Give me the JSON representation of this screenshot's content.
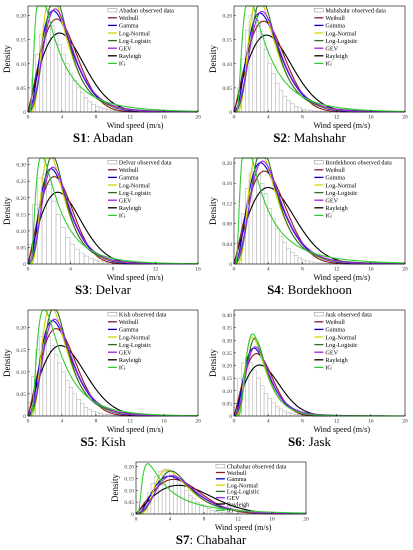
{
  "colors": {
    "Weibull": "#8b1a1a",
    "Gamma": "#0000cc",
    "Log-Normal": "#d4d400",
    "Log-Logistic": "#2f6b2f",
    "GEV": "#a020f0",
    "Rayleigh": "#000000",
    "IG": "#33cc33",
    "observed": "#aaaaaa"
  },
  "chart_data": [
    {
      "type": "bar+line",
      "station": "S1",
      "name": "Abadan",
      "caption_code": "S1",
      "caption_name": ": Abadan",
      "xlabel": "Wind speed (m/s)",
      "ylabel": "Density",
      "xlim": [
        0,
        20
      ],
      "ylim": [
        0,
        0.22
      ],
      "xticks": [
        0,
        4,
        8,
        12,
        16,
        20
      ],
      "yticks": [
        0,
        0.05,
        0.1,
        0.15,
        0.2
      ],
      "ytick_labels": [
        "0",
        "0.05",
        "0.10",
        "0.15",
        "0.20"
      ],
      "legend": [
        "Abadan observed data",
        "Weibull",
        "Gamma",
        "Log-Normal",
        "Log-Logistic",
        "GEV",
        "Rayleigh",
        "IG"
      ],
      "mean": 4.1,
      "rayleigh_mode": 3.7,
      "ig_mode": 2.5,
      "histogram": [
        0.02,
        0.07,
        0.12,
        0.16,
        0.18,
        0.19,
        0.18,
        0.16,
        0.14,
        0.12,
        0.1,
        0.08,
        0.065,
        0.05,
        0.04,
        0.03,
        0.022,
        0.016,
        0.012,
        0.009,
        0.007,
        0.005,
        0.004,
        0.003,
        0.002,
        0.002,
        0.001,
        0.001,
        0.001,
        0.001
      ]
    },
    {
      "type": "bar+line",
      "station": "S2",
      "name": "Mahshahr",
      "caption_code": "S2",
      "caption_name": ": Mahshahr",
      "xlabel": "Wind speed (m/s)",
      "ylabel": "Density",
      "xlim": [
        0,
        20
      ],
      "ylim": [
        0,
        0.22
      ],
      "xticks": [
        0,
        4,
        8,
        12,
        16,
        20
      ],
      "yticks": [
        0,
        0.05,
        0.1,
        0.15,
        0.2
      ],
      "ytick_labels": [
        "0",
        "0.05",
        "0.10",
        "0.15",
        "0.20"
      ],
      "legend": [
        "Mahshahr observed data",
        "Weibull",
        "Gamma",
        "Log-Normal",
        "Log-Logistic",
        "GEV",
        "Rayleigh",
        "IG"
      ],
      "mean": 4.2,
      "rayleigh_mode": 3.8,
      "ig_mode": 2.3,
      "histogram": [
        0.01,
        0.05,
        0.11,
        0.17,
        0.2,
        0.21,
        0.19,
        0.16,
        0.13,
        0.1,
        0.08,
        0.06,
        0.045,
        0.033,
        0.024,
        0.017,
        0.012,
        0.009,
        0.006,
        0.004,
        0.003,
        0.002,
        0.002,
        0.001,
        0.001,
        0.001,
        0.0,
        0.0,
        0.0,
        0.0
      ]
    },
    {
      "type": "bar+line",
      "station": "S3",
      "name": "Delvar",
      "caption_code": "S3",
      "caption_name": ": Delvar",
      "xlabel": "Wind speed (m/s)",
      "ylabel": "Density",
      "xlim": [
        0,
        16
      ],
      "ylim": [
        0,
        0.32
      ],
      "xticks": [
        0,
        4,
        8,
        12,
        16
      ],
      "yticks": [
        0,
        0.05,
        0.1,
        0.15,
        0.2,
        0.25,
        0.3
      ],
      "ytick_labels": [
        "0",
        "0.05",
        "0.10",
        "0.15",
        "0.20",
        "0.25",
        "0.30"
      ],
      "legend": [
        "Delvar observed data",
        "Weibull",
        "Gamma",
        "Log-Normal",
        "Log-Logistic",
        "GEV",
        "Rayleigh",
        "IG"
      ],
      "mean": 3.0,
      "rayleigh_mode": 2.8,
      "ig_mode": 1.6,
      "histogram": [
        0.06,
        0.18,
        0.26,
        0.27,
        0.24,
        0.19,
        0.15,
        0.11,
        0.08,
        0.06,
        0.045,
        0.033,
        0.024,
        0.017,
        0.012,
        0.009,
        0.006,
        0.004,
        0.003,
        0.002,
        0.002,
        0.001,
        0.001,
        0.001
      ]
    },
    {
      "type": "bar+line",
      "station": "S4",
      "name": "Bordekhoon",
      "caption_code": "S4",
      "caption_name": ": Bordekhoon",
      "xlabel": "Wind speed (m/s)",
      "ylabel": "Density",
      "xlim": [
        0,
        20
      ],
      "ylim": [
        0,
        0.21
      ],
      "xticks": [
        0,
        4,
        8,
        12,
        16,
        20
      ],
      "yticks": [
        0,
        0.04,
        0.08,
        0.12,
        0.16,
        0.2
      ],
      "ytick_labels": [
        "0",
        "0.04",
        "0.08",
        "0.12",
        "0.16",
        "0.20"
      ],
      "legend": [
        "Bordekhoon observed data",
        "Weibull",
        "Gamma",
        "Log-Normal",
        "Log-Logistic",
        "GEV",
        "Rayleigh",
        "IG"
      ],
      "mean": 4.3,
      "rayleigh_mode": 4.0,
      "ig_mode": 2.8,
      "histogram": [
        0.01,
        0.04,
        0.1,
        0.15,
        0.18,
        0.19,
        0.18,
        0.16,
        0.14,
        0.11,
        0.09,
        0.07,
        0.055,
        0.042,
        0.031,
        0.023,
        0.017,
        0.012,
        0.008,
        0.006,
        0.004,
        0.003,
        0.002,
        0.002,
        0.001,
        0.001,
        0.001,
        0.0,
        0.0,
        0.0
      ]
    },
    {
      "type": "bar+line",
      "station": "S5",
      "name": "Kish",
      "caption_code": "S5",
      "caption_name": ": Kish",
      "xlabel": "Wind speed (m/s)",
      "ylabel": "Density",
      "xlim": [
        0,
        20
      ],
      "ylim": [
        0,
        0.24
      ],
      "xticks": [
        0,
        4,
        8,
        12,
        16,
        20
      ],
      "yticks": [
        0,
        0.05,
        0.1,
        0.15,
        0.2
      ],
      "ytick_labels": [
        "0",
        "0.05",
        "0.10",
        "0.15",
        "0.20"
      ],
      "legend": [
        "Kish observed data",
        "Weibull",
        "Gamma",
        "Log-Normal",
        "Log-Logistic",
        "GEV",
        "Rayleigh",
        "IG"
      ],
      "mean": 4.0,
      "rayleigh_mode": 3.8,
      "ig_mode": 2.0,
      "histogram": [
        0.03,
        0.09,
        0.15,
        0.18,
        0.19,
        0.18,
        0.16,
        0.14,
        0.12,
        0.1,
        0.08,
        0.065,
        0.05,
        0.038,
        0.028,
        0.02,
        0.015,
        0.011,
        0.008,
        0.006,
        0.004,
        0.003,
        0.002,
        0.002,
        0.001,
        0.001,
        0.001,
        0.0,
        0.0,
        0.0
      ]
    },
    {
      "type": "bar+line",
      "station": "S6",
      "name": "Jask",
      "caption_code": "S6",
      "caption_name": ": Jask",
      "xlabel": "Wind speed (m/s)",
      "ylabel": "Density",
      "xlim": [
        0,
        20
      ],
      "ylim": [
        0,
        0.42
      ],
      "xticks": [
        0,
        4,
        8,
        12,
        16,
        20
      ],
      "yticks": [
        0,
        0.05,
        0.1,
        0.15,
        0.2,
        0.25,
        0.3,
        0.35,
        0.4
      ],
      "ytick_labels": [
        "0",
        "0.05",
        "0.10",
        "0.15",
        "0.20",
        "0.25",
        "0.30",
        "0.35",
        "0.40"
      ],
      "legend": [
        "Jask observed data",
        "Weibull",
        "Gamma",
        "Log-Normal",
        "Log-Logistic",
        "GEV",
        "Rayleigh",
        "IG"
      ],
      "mean": 3.2,
      "rayleigh_mode": 3.0,
      "ig_mode": 1.1,
      "histogram": [
        0.05,
        0.15,
        0.21,
        0.23,
        0.21,
        0.18,
        0.15,
        0.12,
        0.09,
        0.07,
        0.052,
        0.038,
        0.028,
        0.02,
        0.014,
        0.01,
        0.007,
        0.005,
        0.003,
        0.002,
        0.002,
        0.001,
        0.001,
        0.001,
        0.0,
        0.0,
        0.0,
        0.0,
        0.0,
        0.0
      ]
    },
    {
      "type": "bar+line",
      "station": "S7",
      "name": "Chabahar",
      "caption_code": "S7",
      "caption_name": ": Chabahar",
      "xlabel": "Wind speed (m/s)",
      "ylabel": "Density",
      "xlim": [
        0,
        20
      ],
      "ylim": [
        0,
        0.22
      ],
      "xticks": [
        0,
        4,
        8,
        12,
        16,
        20
      ],
      "yticks": [
        0,
        0.05,
        0.1,
        0.15,
        0.2
      ],
      "ytick_labels": [
        "0",
        "0.05",
        "0.10",
        "0.15",
        "0.20"
      ],
      "legend": [
        "Chabahar observed data",
        "Weibull",
        "Gamma",
        "Log-Normal",
        "Log-Logistic",
        "GEV",
        "Rayleigh",
        "IG"
      ],
      "mean": 5.4,
      "rayleigh_mode": 5.0,
      "ig_mode": 4.0,
      "histogram": [
        0.005,
        0.02,
        0.05,
        0.09,
        0.13,
        0.16,
        0.18,
        0.19,
        0.19,
        0.18,
        0.16,
        0.14,
        0.12,
        0.1,
        0.08,
        0.065,
        0.05,
        0.04,
        0.03,
        0.022,
        0.016,
        0.012,
        0.008,
        0.006,
        0.004,
        0.003,
        0.002,
        0.002,
        0.001,
        0.001
      ]
    }
  ]
}
